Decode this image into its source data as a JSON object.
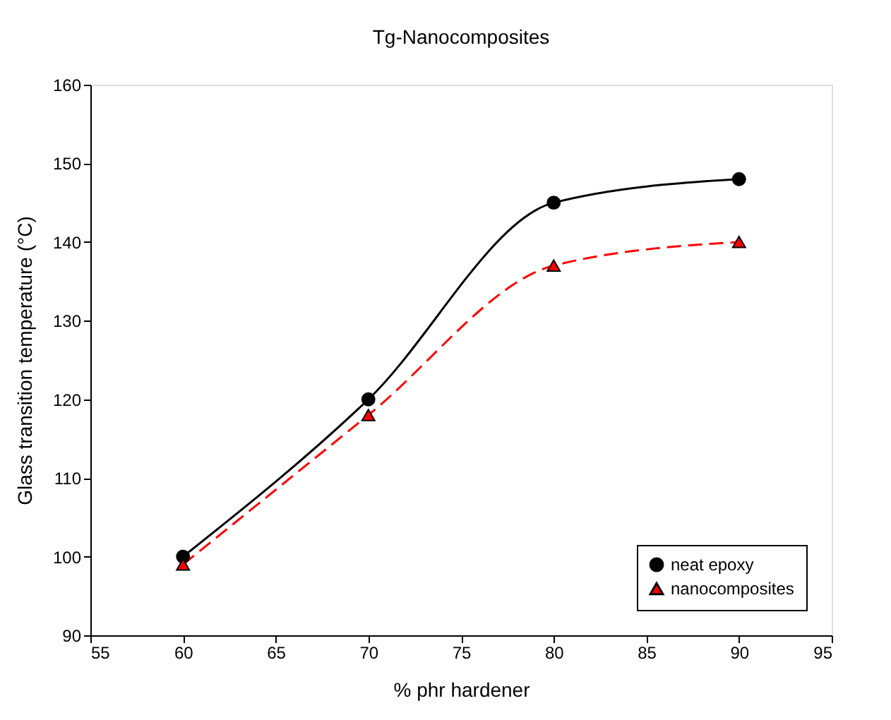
{
  "chart_data": {
    "type": "line",
    "title": "Tg-Nanocomposites",
    "xlabel": "% phr hardener",
    "ylabel": "Glass transition temperature (°C)",
    "x": [
      60,
      70,
      80,
      90
    ],
    "series": [
      {
        "name": "neat epoxy",
        "color": "#000000",
        "values": [
          100,
          120,
          145,
          148
        ],
        "marker": "circle",
        "line_style": "solid"
      },
      {
        "name": "nanocomposites",
        "color": "#ff0000",
        "values": [
          99,
          118,
          137,
          140
        ],
        "marker": "triangle",
        "line_style": "dashed"
      }
    ],
    "xlim": [
      55,
      95
    ],
    "xticks": [
      55,
      60,
      65,
      70,
      75,
      80,
      85,
      90,
      95
    ],
    "ylim": [
      90,
      160
    ],
    "yticks": [
      90,
      100,
      110,
      120,
      130,
      140,
      150,
      160
    ],
    "grid": false,
    "legend": "bottom right"
  }
}
